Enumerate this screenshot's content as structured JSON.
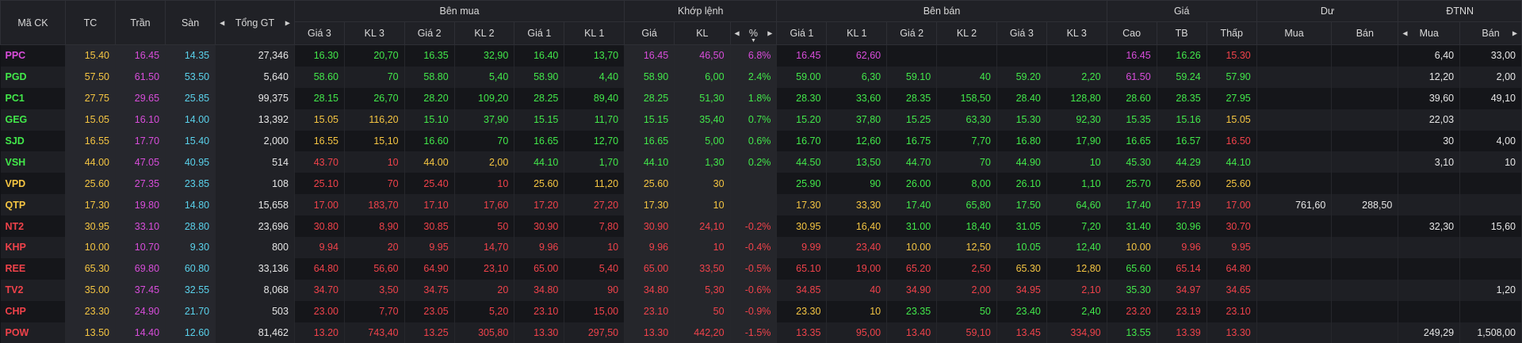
{
  "headers": {
    "ma_ck": "Mã CK",
    "tc": "TC",
    "tran": "Trần",
    "san": "Sàn",
    "tong_gt": "Tổng GT",
    "ben_mua": "Bên mua",
    "khop_lenh": "Khớp lệnh",
    "ben_ban": "Bên bán",
    "gia_group": "Giá",
    "du": "Dư",
    "dtnn": "ĐTNN",
    "gia3": "Giá 3",
    "kl3": "KL 3",
    "gia2": "Giá 2",
    "kl2": "KL 2",
    "gia1": "Giá 1",
    "kl1": "KL 1",
    "khop_gia": "Giá",
    "khop_kl": "KL",
    "khop_pct": "%",
    "cao": "Cao",
    "tb": "TB",
    "thap": "Thấp",
    "du_mua": "Mua",
    "du_ban": "Bán",
    "nn_mua": "Mua",
    "nn_ban": "Bán"
  },
  "colors": {
    "up": "#42e84a",
    "ref": "#f5c542",
    "down": "#f0424a",
    "ceil": "#d94ddb",
    "floor": "#5ad2ec",
    "white": "#e6e6e6"
  },
  "rows": [
    {
      "sym": [
        "PPC",
        "c"
      ],
      "tc": "15.40",
      "tran": "16.45",
      "san": "14.35",
      "tgt": "27,346",
      "cells": [
        [
          "16.30",
          "u"
        ],
        [
          "20,70",
          "u"
        ],
        [
          "16.35",
          "u"
        ],
        [
          "32,90",
          "u"
        ],
        [
          "16.40",
          "u"
        ],
        [
          "13,70",
          "u"
        ],
        [
          "16.45",
          "c"
        ],
        [
          "46,50",
          "c"
        ],
        [
          "6.8%",
          "c"
        ],
        [
          "16.45",
          "c"
        ],
        [
          "62,60",
          "c"
        ],
        [
          "",
          ""
        ],
        [
          "",
          ""
        ],
        [
          "",
          ""
        ],
        [
          "",
          ""
        ],
        [
          "16.45",
          "c"
        ],
        [
          "16.26",
          "u"
        ],
        [
          "15.30",
          "d"
        ],
        [
          "",
          ""
        ],
        [
          "",
          ""
        ],
        [
          "6,40",
          "w"
        ],
        [
          "33,00",
          "w"
        ]
      ]
    },
    {
      "sym": [
        "PGD",
        "u"
      ],
      "tc": "57.50",
      "tran": "61.50",
      "san": "53.50",
      "tgt": "5,640",
      "cells": [
        [
          "58.60",
          "u"
        ],
        [
          "70",
          "u"
        ],
        [
          "58.80",
          "u"
        ],
        [
          "5,40",
          "u"
        ],
        [
          "58.90",
          "u"
        ],
        [
          "4,40",
          "u"
        ],
        [
          "58.90",
          "u"
        ],
        [
          "6,00",
          "u"
        ],
        [
          "2.4%",
          "u"
        ],
        [
          "59.00",
          "u"
        ],
        [
          "6,30",
          "u"
        ],
        [
          "59.10",
          "u"
        ],
        [
          "40",
          "u"
        ],
        [
          "59.20",
          "u"
        ],
        [
          "2,20",
          "u"
        ],
        [
          "61.50",
          "c"
        ],
        [
          "59.24",
          "u"
        ],
        [
          "57.90",
          "u"
        ],
        [
          "",
          ""
        ],
        [
          "",
          ""
        ],
        [
          "12,20",
          "w"
        ],
        [
          "2,00",
          "w"
        ]
      ]
    },
    {
      "sym": [
        "PC1",
        "u"
      ],
      "tc": "27.75",
      "tran": "29.65",
      "san": "25.85",
      "tgt": "99,375",
      "cells": [
        [
          "28.15",
          "u"
        ],
        [
          "26,70",
          "u"
        ],
        [
          "28.20",
          "u"
        ],
        [
          "109,20",
          "u"
        ],
        [
          "28.25",
          "u"
        ],
        [
          "89,40",
          "u"
        ],
        [
          "28.25",
          "u"
        ],
        [
          "51,30",
          "u"
        ],
        [
          "1.8%",
          "u"
        ],
        [
          "28.30",
          "u"
        ],
        [
          "33,60",
          "u"
        ],
        [
          "28.35",
          "u"
        ],
        [
          "158,50",
          "u"
        ],
        [
          "28.40",
          "u"
        ],
        [
          "128,80",
          "u"
        ],
        [
          "28.60",
          "u"
        ],
        [
          "28.35",
          "u"
        ],
        [
          "27.95",
          "u"
        ],
        [
          "",
          ""
        ],
        [
          "",
          ""
        ],
        [
          "39,60",
          "w"
        ],
        [
          "49,10",
          "w"
        ]
      ]
    },
    {
      "sym": [
        "GEG",
        "u"
      ],
      "tc": "15.05",
      "tran": "16.10",
      "san": "14.00",
      "tgt": "13,392",
      "cells": [
        [
          "15.05",
          "r"
        ],
        [
          "116,20",
          "r"
        ],
        [
          "15.10",
          "u"
        ],
        [
          "37,90",
          "u"
        ],
        [
          "15.15",
          "u"
        ],
        [
          "11,70",
          "u"
        ],
        [
          "15.15",
          "u"
        ],
        [
          "35,40",
          "u"
        ],
        [
          "0.7%",
          "u"
        ],
        [
          "15.20",
          "u"
        ],
        [
          "37,80",
          "u"
        ],
        [
          "15.25",
          "u"
        ],
        [
          "63,30",
          "u"
        ],
        [
          "15.30",
          "u"
        ],
        [
          "92,30",
          "u"
        ],
        [
          "15.35",
          "u"
        ],
        [
          "15.16",
          "u"
        ],
        [
          "15.05",
          "r"
        ],
        [
          "",
          ""
        ],
        [
          "",
          ""
        ],
        [
          "22,03",
          "w"
        ],
        [
          "",
          ""
        ]
      ]
    },
    {
      "sym": [
        "SJD",
        "u"
      ],
      "tc": "16.55",
      "tran": "17.70",
      "san": "15.40",
      "tgt": "2,000",
      "cells": [
        [
          "16.55",
          "r"
        ],
        [
          "15,10",
          "r"
        ],
        [
          "16.60",
          "u"
        ],
        [
          "70",
          "u"
        ],
        [
          "16.65",
          "u"
        ],
        [
          "12,70",
          "u"
        ],
        [
          "16.65",
          "u"
        ],
        [
          "5,00",
          "u"
        ],
        [
          "0.6%",
          "u"
        ],
        [
          "16.70",
          "u"
        ],
        [
          "12,60",
          "u"
        ],
        [
          "16.75",
          "u"
        ],
        [
          "7,70",
          "u"
        ],
        [
          "16.80",
          "u"
        ],
        [
          "17,90",
          "u"
        ],
        [
          "16.65",
          "u"
        ],
        [
          "16.57",
          "u"
        ],
        [
          "16.50",
          "d"
        ],
        [
          "",
          ""
        ],
        [
          "",
          ""
        ],
        [
          "30",
          "w"
        ],
        [
          "4,00",
          "w"
        ]
      ]
    },
    {
      "sym": [
        "VSH",
        "u"
      ],
      "tc": "44.00",
      "tran": "47.05",
      "san": "40.95",
      "tgt": "514",
      "cells": [
        [
          "43.70",
          "d"
        ],
        [
          "10",
          "d"
        ],
        [
          "44.00",
          "r"
        ],
        [
          "2,00",
          "r"
        ],
        [
          "44.10",
          "u"
        ],
        [
          "1,70",
          "u"
        ],
        [
          "44.10",
          "u"
        ],
        [
          "1,30",
          "u"
        ],
        [
          "0.2%",
          "u"
        ],
        [
          "44.50",
          "u"
        ],
        [
          "13,50",
          "u"
        ],
        [
          "44.70",
          "u"
        ],
        [
          "70",
          "u"
        ],
        [
          "44.90",
          "u"
        ],
        [
          "10",
          "u"
        ],
        [
          "45.30",
          "u"
        ],
        [
          "44.29",
          "u"
        ],
        [
          "44.10",
          "u"
        ],
        [
          "",
          ""
        ],
        [
          "",
          ""
        ],
        [
          "3,10",
          "w"
        ],
        [
          "10",
          "w"
        ]
      ]
    },
    {
      "sym": [
        "VPD",
        "r"
      ],
      "tc": "25.60",
      "tran": "27.35",
      "san": "23.85",
      "tgt": "108",
      "cells": [
        [
          "25.10",
          "d"
        ],
        [
          "70",
          "d"
        ],
        [
          "25.40",
          "d"
        ],
        [
          "10",
          "d"
        ],
        [
          "25.60",
          "r"
        ],
        [
          "11,20",
          "r"
        ],
        [
          "25.60",
          "r"
        ],
        [
          "30",
          "r"
        ],
        [
          "",
          ""
        ],
        [
          "25.90",
          "u"
        ],
        [
          "90",
          "u"
        ],
        [
          "26.00",
          "u"
        ],
        [
          "8,00",
          "u"
        ],
        [
          "26.10",
          "u"
        ],
        [
          "1,10",
          "u"
        ],
        [
          "25.70",
          "u"
        ],
        [
          "25.60",
          "r"
        ],
        [
          "25.60",
          "r"
        ],
        [
          "",
          ""
        ],
        [
          "",
          ""
        ],
        [
          "",
          ""
        ],
        [
          "",
          ""
        ]
      ]
    },
    {
      "sym": [
        "QTP",
        "r"
      ],
      "tc": "17.30",
      "tran": "19.80",
      "san": "14.80",
      "tgt": "15,658",
      "cells": [
        [
          "17.00",
          "d"
        ],
        [
          "183,70",
          "d"
        ],
        [
          "17.10",
          "d"
        ],
        [
          "17,60",
          "d"
        ],
        [
          "17.20",
          "d"
        ],
        [
          "27,20",
          "d"
        ],
        [
          "17.30",
          "r"
        ],
        [
          "10",
          "r"
        ],
        [
          "",
          ""
        ],
        [
          "17.30",
          "r"
        ],
        [
          "33,30",
          "r"
        ],
        [
          "17.40",
          "u"
        ],
        [
          "65,80",
          "u"
        ],
        [
          "17.50",
          "u"
        ],
        [
          "64,60",
          "u"
        ],
        [
          "17.40",
          "u"
        ],
        [
          "17.19",
          "d"
        ],
        [
          "17.00",
          "d"
        ],
        [
          "761,60",
          "w"
        ],
        [
          "288,50",
          "w"
        ],
        [
          "",
          ""
        ],
        [
          "",
          ""
        ]
      ]
    },
    {
      "sym": [
        "NT2",
        "d"
      ],
      "tc": "30.95",
      "tran": "33.10",
      "san": "28.80",
      "tgt": "23,696",
      "cells": [
        [
          "30.80",
          "d"
        ],
        [
          "8,90",
          "d"
        ],
        [
          "30.85",
          "d"
        ],
        [
          "50",
          "d"
        ],
        [
          "30.90",
          "d"
        ],
        [
          "7,80",
          "d"
        ],
        [
          "30.90",
          "d"
        ],
        [
          "24,10",
          "d"
        ],
        [
          "-0.2%",
          "d"
        ],
        [
          "30.95",
          "r"
        ],
        [
          "16,40",
          "r"
        ],
        [
          "31.00",
          "u"
        ],
        [
          "18,40",
          "u"
        ],
        [
          "31.05",
          "u"
        ],
        [
          "7,20",
          "u"
        ],
        [
          "31.40",
          "u"
        ],
        [
          "30.96",
          "u"
        ],
        [
          "30.70",
          "d"
        ],
        [
          "",
          ""
        ],
        [
          "",
          ""
        ],
        [
          "32,30",
          "w"
        ],
        [
          "15,60",
          "w"
        ]
      ]
    },
    {
      "sym": [
        "KHP",
        "d"
      ],
      "tc": "10.00",
      "tran": "10.70",
      "san": "9.30",
      "tgt": "800",
      "cells": [
        [
          "9.94",
          "d"
        ],
        [
          "20",
          "d"
        ],
        [
          "9.95",
          "d"
        ],
        [
          "14,70",
          "d"
        ],
        [
          "9.96",
          "d"
        ],
        [
          "10",
          "d"
        ],
        [
          "9.96",
          "d"
        ],
        [
          "10",
          "d"
        ],
        [
          "-0.4%",
          "d"
        ],
        [
          "9.99",
          "d"
        ],
        [
          "23,40",
          "d"
        ],
        [
          "10.00",
          "r"
        ],
        [
          "12,50",
          "r"
        ],
        [
          "10.05",
          "u"
        ],
        [
          "12,40",
          "u"
        ],
        [
          "10.00",
          "r"
        ],
        [
          "9.96",
          "d"
        ],
        [
          "9.95",
          "d"
        ],
        [
          "",
          ""
        ],
        [
          "",
          ""
        ],
        [
          "",
          ""
        ],
        [
          "",
          ""
        ]
      ]
    },
    {
      "sym": [
        "REE",
        "d"
      ],
      "tc": "65.30",
      "tran": "69.80",
      "san": "60.80",
      "tgt": "33,136",
      "cells": [
        [
          "64.80",
          "d"
        ],
        [
          "56,60",
          "d"
        ],
        [
          "64.90",
          "d"
        ],
        [
          "23,10",
          "d"
        ],
        [
          "65.00",
          "d"
        ],
        [
          "5,40",
          "d"
        ],
        [
          "65.00",
          "d"
        ],
        [
          "33,50",
          "d"
        ],
        [
          "-0.5%",
          "d"
        ],
        [
          "65.10",
          "d"
        ],
        [
          "19,00",
          "d"
        ],
        [
          "65.20",
          "d"
        ],
        [
          "2,50",
          "d"
        ],
        [
          "65.30",
          "r"
        ],
        [
          "12,80",
          "r"
        ],
        [
          "65.60",
          "u"
        ],
        [
          "65.14",
          "d"
        ],
        [
          "64.80",
          "d"
        ],
        [
          "",
          ""
        ],
        [
          "",
          ""
        ],
        [
          "",
          ""
        ],
        [
          "",
          ""
        ]
      ]
    },
    {
      "sym": [
        "TV2",
        "d"
      ],
      "tc": "35.00",
      "tran": "37.45",
      "san": "32.55",
      "tgt": "8,068",
      "cells": [
        [
          "34.70",
          "d"
        ],
        [
          "3,50",
          "d"
        ],
        [
          "34.75",
          "d"
        ],
        [
          "20",
          "d"
        ],
        [
          "34.80",
          "d"
        ],
        [
          "90",
          "d"
        ],
        [
          "34.80",
          "d"
        ],
        [
          "5,30",
          "d"
        ],
        [
          "-0.6%",
          "d"
        ],
        [
          "34.85",
          "d"
        ],
        [
          "40",
          "d"
        ],
        [
          "34.90",
          "d"
        ],
        [
          "2,00",
          "d"
        ],
        [
          "34.95",
          "d"
        ],
        [
          "2,10",
          "d"
        ],
        [
          "35.30",
          "u"
        ],
        [
          "34.97",
          "d"
        ],
        [
          "34.65",
          "d"
        ],
        [
          "",
          ""
        ],
        [
          "",
          ""
        ],
        [
          "",
          ""
        ],
        [
          "1,20",
          "w"
        ]
      ]
    },
    {
      "sym": [
        "CHP",
        "d"
      ],
      "tc": "23.30",
      "tran": "24.90",
      "san": "21.70",
      "tgt": "503",
      "cells": [
        [
          "23.00",
          "d"
        ],
        [
          "7,70",
          "d"
        ],
        [
          "23.05",
          "d"
        ],
        [
          "5,20",
          "d"
        ],
        [
          "23.10",
          "d"
        ],
        [
          "15,00",
          "d"
        ],
        [
          "23.10",
          "d"
        ],
        [
          "50",
          "d"
        ],
        [
          "-0.9%",
          "d"
        ],
        [
          "23.30",
          "r"
        ],
        [
          "10",
          "r"
        ],
        [
          "23.35",
          "u"
        ],
        [
          "50",
          "u"
        ],
        [
          "23.40",
          "u"
        ],
        [
          "2,40",
          "u"
        ],
        [
          "23.20",
          "d"
        ],
        [
          "23.19",
          "d"
        ],
        [
          "23.10",
          "d"
        ],
        [
          "",
          ""
        ],
        [
          "",
          ""
        ],
        [
          "",
          ""
        ],
        [
          "",
          ""
        ]
      ]
    },
    {
      "sym": [
        "POW",
        "d"
      ],
      "tc": "13.50",
      "tran": "14.40",
      "san": "12.60",
      "tgt": "81,462",
      "cells": [
        [
          "13.20",
          "d"
        ],
        [
          "743,40",
          "d"
        ],
        [
          "13.25",
          "d"
        ],
        [
          "305,80",
          "d"
        ],
        [
          "13.30",
          "d"
        ],
        [
          "297,50",
          "d"
        ],
        [
          "13.30",
          "d"
        ],
        [
          "442,20",
          "d"
        ],
        [
          "-1.5%",
          "d"
        ],
        [
          "13.35",
          "d"
        ],
        [
          "95,00",
          "d"
        ],
        [
          "13.40",
          "d"
        ],
        [
          "59,10",
          "d"
        ],
        [
          "13.45",
          "d"
        ],
        [
          "334,90",
          "d"
        ],
        [
          "13.55",
          "u"
        ],
        [
          "13.39",
          "d"
        ],
        [
          "13.30",
          "d"
        ],
        [
          "",
          ""
        ],
        [
          "",
          ""
        ],
        [
          "249,29",
          "w"
        ],
        [
          "1,508,00",
          "w"
        ]
      ]
    }
  ]
}
